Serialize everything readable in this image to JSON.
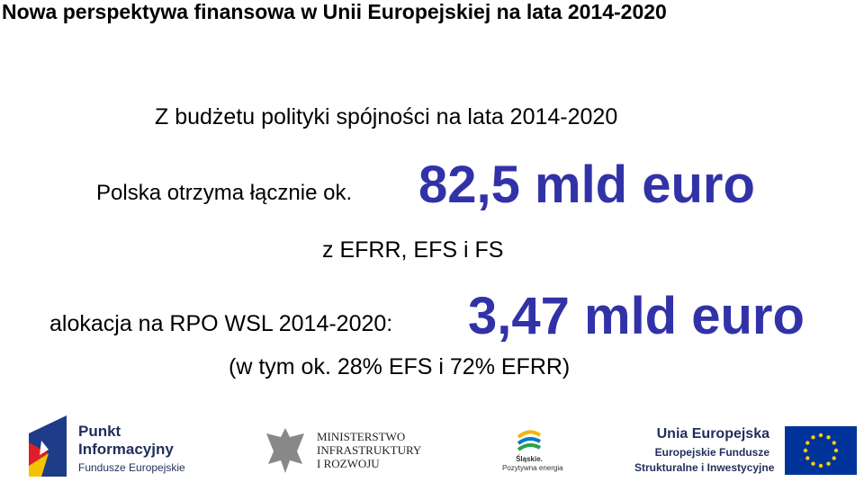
{
  "header": {
    "title": "Nowa perspektywa finansowa w Unii Europejskiej na lata 2014-2020"
  },
  "body": {
    "line1": "Z budżetu polityki spójności na lata 2014-2020",
    "line2_text": "Polska otrzyma łącznie ok.",
    "line2_amount": "82,5 mld euro",
    "line3": "z EFRR, EFS i FS",
    "line4_text": "alokacja na RPO WSL 2014-2020:",
    "line4_amount": "3,47 mld euro",
    "line5": "(w tym ok. 28% EFS i 72% EFRR)"
  },
  "logos": {
    "punkt": [
      "Punkt",
      "Informacyjny",
      "Fundusze Europejskie"
    ],
    "ministerstwo": [
      "MINISTERSTWO",
      "INFRASTRUKTURY",
      "I ROZWOJU"
    ],
    "slaskie": [
      "Śląskie.",
      "Pozytywna energia"
    ],
    "ue": [
      "Unia Europejska",
      "Europejskie Fundusze",
      "Strukturalne i Inwestycyjne"
    ]
  }
}
